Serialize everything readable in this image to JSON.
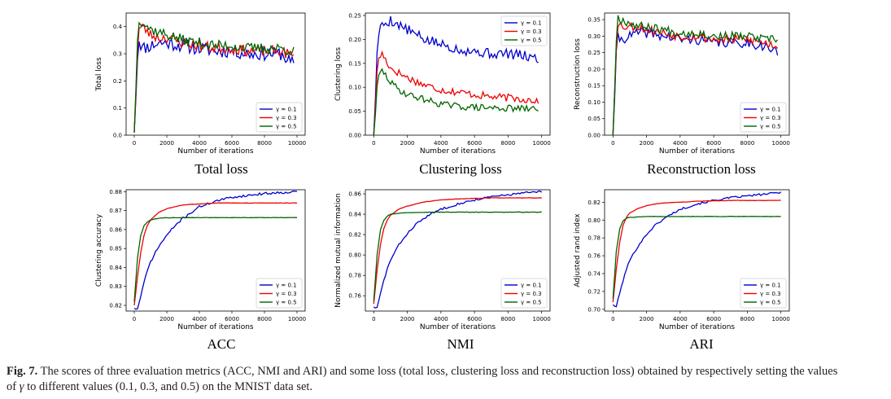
{
  "caption": {
    "label": "Fig. 7.",
    "line1": "The scores of three evaluation metrics (ACC, NMI and ARI) and some loss (total loss, clustering loss and reconstruction loss) obtained by respectively setting the values",
    "line2_pre": "of ",
    "gamma": "γ",
    "line2_post": " to different values (0.1, 0.3, and 0.5) on the MNIST data set."
  },
  "colors": {
    "g01": "#0000cc",
    "g03": "#ee0000",
    "g05": "#006400"
  },
  "chart_data": [
    {
      "type": "line",
      "title": "Total loss",
      "xlabel": "Number of iterations",
      "ylabel": "Total loss",
      "xlim": [
        0,
        10000
      ],
      "ylim": [
        0,
        0.45
      ],
      "xticks": [
        0,
        2000,
        4000,
        6000,
        8000,
        10000
      ],
      "xtick_labels": [
        "0",
        "2000",
        "4000",
        "6000",
        "8000",
        "10000"
      ],
      "yticks": [
        0,
        0.1,
        0.2,
        0.3,
        0.4
      ],
      "ytick_labels": [
        "0.0",
        "0.1",
        "0.2",
        "0.3",
        "0.4"
      ],
      "legend": "lower right",
      "series": [
        {
          "name": "γ = 0.1",
          "color": "#0000cc",
          "x": [
            0,
            250,
            500,
            1000,
            1500,
            2000,
            3000,
            4000,
            5000,
            6000,
            7000,
            8000,
            9000,
            9800
          ],
          "y": [
            0.01,
            0.36,
            0.32,
            0.33,
            0.34,
            0.34,
            0.33,
            0.32,
            0.31,
            0.31,
            0.3,
            0.3,
            0.3,
            0.26
          ],
          "noise": 0.025,
          "seed": 11
        },
        {
          "name": "γ = 0.3",
          "color": "#ee0000",
          "x": [
            0,
            250,
            500,
            1000,
            1500,
            2000,
            3000,
            4000,
            5000,
            6000,
            7000,
            8000,
            9000,
            9800
          ],
          "y": [
            0.01,
            0.39,
            0.4,
            0.37,
            0.36,
            0.36,
            0.34,
            0.33,
            0.32,
            0.32,
            0.31,
            0.31,
            0.31,
            0.29
          ],
          "noise": 0.02,
          "seed": 23
        },
        {
          "name": "γ = 0.5",
          "color": "#006400",
          "x": [
            0,
            250,
            500,
            1000,
            1500,
            2000,
            3000,
            4000,
            5000,
            6000,
            7000,
            8000,
            9000,
            9800
          ],
          "y": [
            0.01,
            0.43,
            0.42,
            0.39,
            0.38,
            0.37,
            0.35,
            0.34,
            0.33,
            0.33,
            0.32,
            0.32,
            0.32,
            0.31
          ],
          "noise": 0.02,
          "seed": 37
        }
      ]
    },
    {
      "type": "line",
      "title": "Clustering loss",
      "xlabel": "Number of iterations",
      "ylabel": "Clustering loss",
      "xlim": [
        0,
        10000
      ],
      "ylim": [
        0,
        0.255
      ],
      "xticks": [
        0,
        2000,
        4000,
        6000,
        8000,
        10000
      ],
      "xtick_labels": [
        "0",
        "2000",
        "4000",
        "6000",
        "8000",
        "10000"
      ],
      "yticks": [
        0,
        0.05,
        0.1,
        0.15,
        0.2,
        0.25
      ],
      "ytick_labels": [
        "0.00",
        "0.05",
        "0.10",
        "0.15",
        "0.20",
        "0.25"
      ],
      "legend": "upper right",
      "series": [
        {
          "name": "γ = 0.1",
          "color": "#0000cc",
          "x": [
            0,
            250,
            500,
            1000,
            1500,
            2000,
            3000,
            4000,
            5000,
            6000,
            7000,
            8000,
            9000,
            9800
          ],
          "y": [
            0.0,
            0.21,
            0.23,
            0.24,
            0.23,
            0.22,
            0.2,
            0.19,
            0.18,
            0.175,
            0.17,
            0.17,
            0.165,
            0.16
          ],
          "noise": 0.011,
          "seed": 5
        },
        {
          "name": "γ = 0.3",
          "color": "#ee0000",
          "x": [
            0,
            250,
            500,
            1000,
            1500,
            2000,
            3000,
            4000,
            5000,
            6000,
            7000,
            8000,
            9000,
            9800
          ],
          "y": [
            0.0,
            0.16,
            0.17,
            0.14,
            0.13,
            0.12,
            0.105,
            0.095,
            0.09,
            0.085,
            0.08,
            0.078,
            0.075,
            0.072
          ],
          "noise": 0.008,
          "seed": 17
        },
        {
          "name": "γ = 0.5",
          "color": "#006400",
          "x": [
            0,
            250,
            500,
            1000,
            1500,
            2000,
            3000,
            4000,
            5000,
            6000,
            7000,
            8000,
            9000,
            9800
          ],
          "y": [
            0.0,
            0.12,
            0.135,
            0.11,
            0.095,
            0.085,
            0.075,
            0.065,
            0.06,
            0.058,
            0.057,
            0.056,
            0.055,
            0.055
          ],
          "noise": 0.007,
          "seed": 29
        }
      ]
    },
    {
      "type": "line",
      "title": "Reconstruction loss",
      "xlabel": "Number of iterations",
      "ylabel": "Reconstruction loss",
      "xlim": [
        0,
        10000
      ],
      "ylim": [
        0,
        0.37
      ],
      "xticks": [
        0,
        2000,
        4000,
        6000,
        8000,
        10000
      ],
      "xtick_labels": [
        "0",
        "2000",
        "4000",
        "6000",
        "8000",
        "10000"
      ],
      "yticks": [
        0,
        0.05,
        0.1,
        0.15,
        0.2,
        0.25,
        0.3,
        0.35
      ],
      "ytick_labels": [
        "0.00",
        "0.05",
        "0.10",
        "0.15",
        "0.20",
        "0.25",
        "0.30",
        "0.35"
      ],
      "legend": "lower right",
      "series": [
        {
          "name": "γ = 0.1",
          "color": "#0000cc",
          "x": [
            0,
            250,
            500,
            1000,
            1500,
            2000,
            3000,
            4000,
            5000,
            6000,
            7000,
            8000,
            9000,
            9800
          ],
          "y": [
            0.0,
            0.3,
            0.29,
            0.3,
            0.31,
            0.31,
            0.3,
            0.29,
            0.29,
            0.28,
            0.28,
            0.28,
            0.27,
            0.25
          ],
          "noise": 0.015,
          "seed": 41
        },
        {
          "name": "γ = 0.3",
          "color": "#ee0000",
          "x": [
            0,
            250,
            500,
            1000,
            1500,
            2000,
            3000,
            4000,
            5000,
            6000,
            7000,
            8000,
            9000,
            9800
          ],
          "y": [
            0.0,
            0.34,
            0.33,
            0.33,
            0.33,
            0.32,
            0.31,
            0.3,
            0.3,
            0.29,
            0.29,
            0.29,
            0.28,
            0.27
          ],
          "noise": 0.014,
          "seed": 53
        },
        {
          "name": "γ = 0.5",
          "color": "#006400",
          "x": [
            0,
            250,
            500,
            1000,
            1500,
            2000,
            3000,
            4000,
            5000,
            6000,
            7000,
            8000,
            9000,
            9800
          ],
          "y": [
            0.0,
            0.36,
            0.35,
            0.34,
            0.33,
            0.33,
            0.32,
            0.31,
            0.31,
            0.3,
            0.3,
            0.3,
            0.29,
            0.29
          ],
          "noise": 0.013,
          "seed": 67
        }
      ]
    },
    {
      "type": "line",
      "title": "ACC",
      "xlabel": "Number of iterations",
      "ylabel": "Clustering accuracy",
      "xlim": [
        0,
        10000
      ],
      "ylim": [
        0.817,
        0.881
      ],
      "xticks": [
        0,
        2000,
        4000,
        6000,
        8000,
        10000
      ],
      "xtick_labels": [
        "0",
        "2000",
        "4000",
        "6000",
        "8000",
        "10000"
      ],
      "yticks": [
        0.82,
        0.83,
        0.84,
        0.85,
        0.86,
        0.87,
        0.88
      ],
      "ytick_labels": [
        "0.82",
        "0.83",
        "0.84",
        "0.85",
        "0.86",
        "0.87",
        "0.88"
      ],
      "legend": "lower right",
      "series": [
        {
          "name": "γ = 0.1",
          "color": "#0000cc",
          "x": [
            0,
            200,
            400,
            600,
            800,
            1000,
            1500,
            2000,
            2500,
            3000,
            3500,
            4000,
            5000,
            6000,
            7000,
            8000,
            9000,
            10000
          ],
          "y": [
            0.8185,
            0.818,
            0.825,
            0.832,
            0.838,
            0.843,
            0.851,
            0.857,
            0.862,
            0.866,
            0.869,
            0.872,
            0.875,
            0.877,
            0.878,
            0.879,
            0.8795,
            0.88
          ],
          "noise": 0.0006,
          "seed": 71
        },
        {
          "name": "γ = 0.3",
          "color": "#ee0000",
          "x": [
            0,
            200,
            400,
            600,
            800,
            1000,
            1500,
            2000,
            2500,
            3000,
            4000,
            5000,
            6000,
            7000,
            8000,
            9000,
            10000
          ],
          "y": [
            0.82,
            0.835,
            0.848,
            0.857,
            0.862,
            0.865,
            0.869,
            0.871,
            0.872,
            0.873,
            0.8735,
            0.874,
            0.874,
            0.874,
            0.874,
            0.874,
            0.874
          ],
          "noise": 0.0001,
          "seed": 73
        },
        {
          "name": "γ = 0.5",
          "color": "#006400",
          "x": [
            0,
            200,
            400,
            600,
            800,
            1000,
            1500,
            2000,
            3000,
            4000,
            5000,
            6000,
            7000,
            8000,
            9000,
            10000
          ],
          "y": [
            0.822,
            0.845,
            0.857,
            0.862,
            0.864,
            0.865,
            0.866,
            0.8662,
            0.8663,
            0.8663,
            0.8663,
            0.8663,
            0.8663,
            0.8663,
            0.8663,
            0.8663
          ],
          "noise": 0.0001,
          "seed": 79
        }
      ]
    },
    {
      "type": "line",
      "title": "NMI",
      "xlabel": "Number of iterations",
      "ylabel": "Normalized mutual information",
      "xlim": [
        0,
        10000
      ],
      "ylim": [
        0.745,
        0.864
      ],
      "xticks": [
        0,
        2000,
        4000,
        6000,
        8000,
        10000
      ],
      "xtick_labels": [
        "0",
        "2000",
        "4000",
        "6000",
        "8000",
        "10000"
      ],
      "yticks": [
        0.76,
        0.78,
        0.8,
        0.82,
        0.84,
        0.86
      ],
      "ytick_labels": [
        "0.76",
        "0.78",
        "0.80",
        "0.82",
        "0.84",
        "0.86"
      ],
      "legend": "lower right",
      "series": [
        {
          "name": "γ = 0.1",
          "color": "#0000cc",
          "x": [
            0,
            200,
            400,
            600,
            800,
            1000,
            1500,
            2000,
            2500,
            3000,
            3500,
            4000,
            5000,
            6000,
            7000,
            8000,
            9000,
            10000
          ],
          "y": [
            0.749,
            0.748,
            0.762,
            0.775,
            0.786,
            0.795,
            0.81,
            0.821,
            0.83,
            0.836,
            0.841,
            0.845,
            0.85,
            0.854,
            0.857,
            0.859,
            0.861,
            0.862
          ],
          "noise": 0.001,
          "seed": 83
        },
        {
          "name": "γ = 0.3",
          "color": "#ee0000",
          "x": [
            0,
            200,
            400,
            600,
            800,
            1000,
            1500,
            2000,
            2500,
            3000,
            4000,
            5000,
            6000,
            7000,
            8000,
            9000,
            10000
          ],
          "y": [
            0.752,
            0.785,
            0.81,
            0.826,
            0.834,
            0.839,
            0.845,
            0.848,
            0.85,
            0.852,
            0.854,
            0.855,
            0.8555,
            0.856,
            0.856,
            0.856,
            0.856
          ],
          "noise": 0.0002,
          "seed": 89
        },
        {
          "name": "γ = 0.5",
          "color": "#006400",
          "x": [
            0,
            200,
            400,
            600,
            800,
            1000,
            1500,
            2000,
            3000,
            4000,
            5000,
            6000,
            7000,
            8000,
            9000,
            10000
          ],
          "y": [
            0.755,
            0.8,
            0.825,
            0.834,
            0.838,
            0.84,
            0.841,
            0.8415,
            0.842,
            0.842,
            0.842,
            0.842,
            0.842,
            0.842,
            0.842,
            0.842
          ],
          "noise": 0.0002,
          "seed": 97
        }
      ]
    },
    {
      "type": "line",
      "title": "ARI",
      "xlabel": "Number of iterations",
      "ylabel": "Adjusted rand index",
      "xlim": [
        0,
        10000
      ],
      "ylim": [
        0.698,
        0.834
      ],
      "xticks": [
        0,
        2000,
        4000,
        6000,
        8000,
        10000
      ],
      "xtick_labels": [
        "0",
        "2000",
        "4000",
        "6000",
        "8000",
        "10000"
      ],
      "yticks": [
        0.7,
        0.72,
        0.74,
        0.76,
        0.78,
        0.8,
        0.82
      ],
      "ytick_labels": [
        "0.70",
        "0.72",
        "0.74",
        "0.76",
        "0.78",
        "0.80",
        "0.82"
      ],
      "legend": "lower right",
      "series": [
        {
          "name": "γ = 0.1",
          "color": "#0000cc",
          "x": [
            0,
            200,
            400,
            600,
            800,
            1000,
            1500,
            2000,
            2500,
            3000,
            3500,
            4000,
            5000,
            6000,
            7000,
            8000,
            9000,
            10000
          ],
          "y": [
            0.705,
            0.703,
            0.718,
            0.732,
            0.745,
            0.755,
            0.771,
            0.784,
            0.794,
            0.801,
            0.807,
            0.812,
            0.818,
            0.822,
            0.825,
            0.827,
            0.829,
            0.831
          ],
          "noise": 0.0011,
          "seed": 101
        },
        {
          "name": "γ = 0.3",
          "color": "#ee0000",
          "x": [
            0,
            200,
            400,
            600,
            800,
            1000,
            1500,
            2000,
            2500,
            3000,
            4000,
            5000,
            6000,
            7000,
            8000,
            9000,
            10000
          ],
          "y": [
            0.708,
            0.745,
            0.775,
            0.794,
            0.803,
            0.808,
            0.813,
            0.816,
            0.818,
            0.819,
            0.82,
            0.821,
            0.8215,
            0.822,
            0.822,
            0.822,
            0.822
          ],
          "noise": 0.0002,
          "seed": 103
        },
        {
          "name": "γ = 0.5",
          "color": "#006400",
          "x": [
            0,
            200,
            400,
            600,
            800,
            1000,
            1500,
            2000,
            3000,
            4000,
            5000,
            6000,
            7000,
            8000,
            9000,
            10000
          ],
          "y": [
            0.712,
            0.765,
            0.79,
            0.799,
            0.802,
            0.803,
            0.8035,
            0.804,
            0.804,
            0.804,
            0.804,
            0.804,
            0.804,
            0.804,
            0.804,
            0.804
          ],
          "noise": 0.0002,
          "seed": 107
        }
      ]
    }
  ]
}
